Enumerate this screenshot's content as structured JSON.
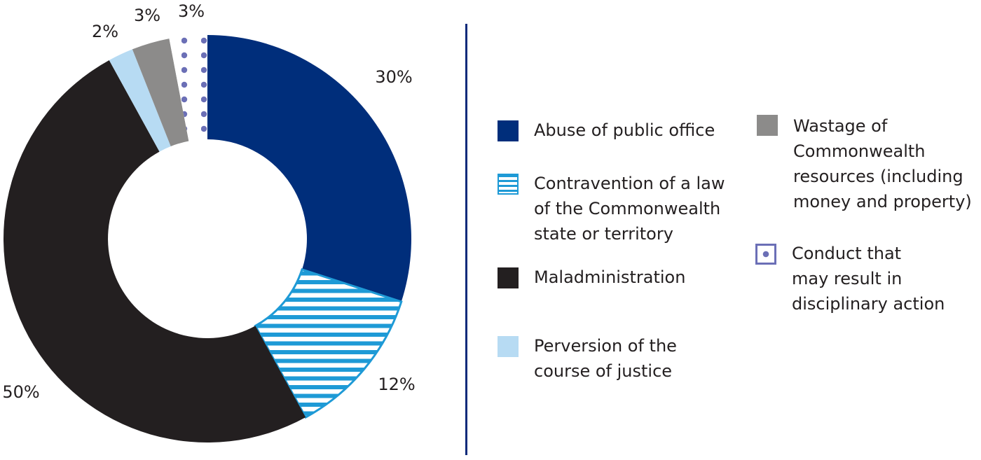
{
  "chart_data": {
    "type": "pie",
    "variant": "donut",
    "title": "",
    "categories": [
      "Abuse of public office",
      "Contravention of a law of the Commonwealth state or territory",
      "Maladministration",
      "Perversion of the course of justice",
      "Wastage of Commonwealth resources (including money and property)",
      "Conduct that may result in disciplinary action"
    ],
    "values": [
      30,
      12,
      50,
      2,
      3,
      3
    ],
    "data_labels": [
      "30%",
      "12%",
      "50%",
      "2%",
      "3%",
      "3%"
    ],
    "colors": [
      "#002e7b",
      "#1e9ad6",
      "#231f20",
      "#b7dbf3",
      "#8c8b8a",
      "#6b6fb6"
    ],
    "patterns": [
      "solid",
      "horizontal-stripes",
      "solid",
      "solid",
      "solid",
      "dots"
    ],
    "legend_position": "right"
  },
  "legend": [
    {
      "label": "Abuse of public office",
      "swatch": "solid",
      "color": "#002e7b"
    },
    {
      "label": "Contravention of a law\nof the Commonwealth\nstate or territory",
      "swatch": "stripes",
      "color": "#1e9ad6"
    },
    {
      "label": "Maladministration",
      "swatch": "solid",
      "color": "#231f20"
    },
    {
      "label": "Perversion of the\ncourse of justice",
      "swatch": "solid",
      "color": "#b7dbf3"
    },
    {
      "label": "Wastage of\nCommonwealth\nresources (including\nmoney and property)",
      "swatch": "solid",
      "color": "#8c8b8a"
    },
    {
      "label": "Conduct that\nmay result in\ndisciplinary action",
      "swatch": "dot",
      "color": "#6b6fb6"
    }
  ],
  "colors": {
    "divider": "#0b2a7a",
    "text": "#231f20"
  }
}
